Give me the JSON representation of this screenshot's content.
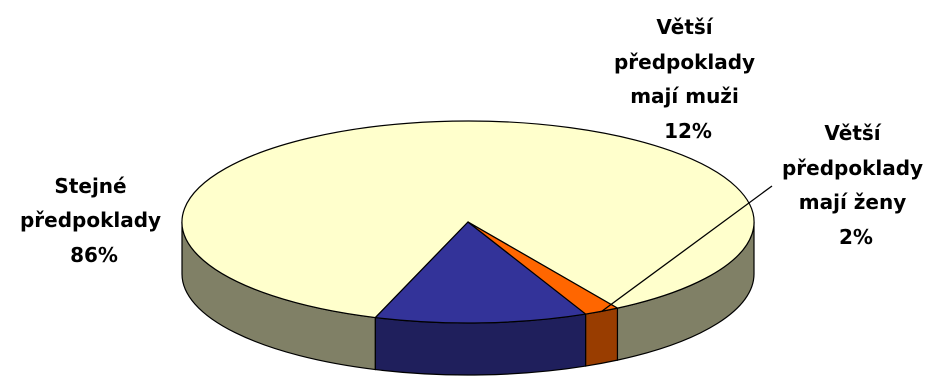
{
  "chart_data": {
    "type": "pie",
    "style": "3d",
    "title": "",
    "slices": [
      {
        "label_lines": [
          "Stejné",
          "předpoklady"
        ],
        "value": 86,
        "value_label": "86%",
        "color": "#FFFFCC",
        "side_color": "#808066"
      },
      {
        "label_lines": [
          "Větší",
          "předpoklady",
          "mají muži"
        ],
        "value": 12,
        "value_label": "12%",
        "color": "#333399",
        "side_color": "#1F1F5C"
      },
      {
        "label_lines": [
          "Větší",
          "předpoklady",
          "mají ženy"
        ],
        "value": 2,
        "value_label": "2%",
        "color": "#FF6600",
        "side_color": "#993D00"
      }
    ],
    "legend": "none"
  }
}
